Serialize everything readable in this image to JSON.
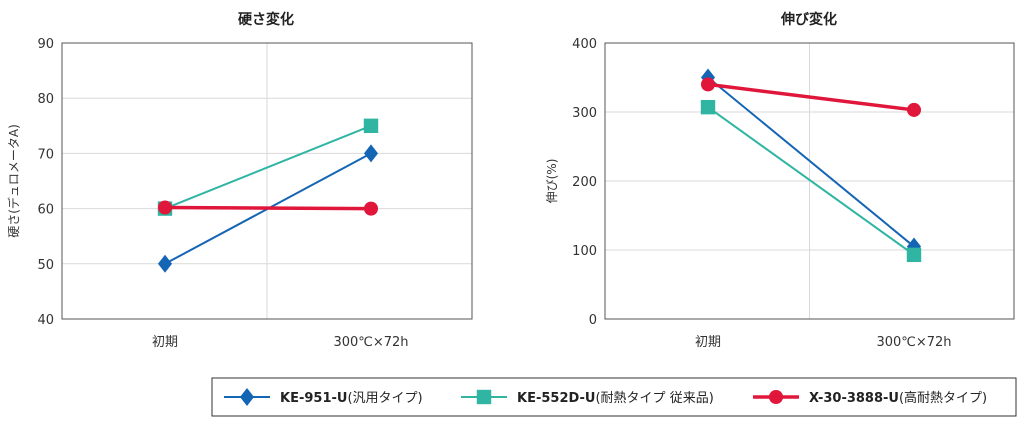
{
  "chart_data": [
    {
      "type": "line",
      "title": "硬さ変化",
      "ylabel": "硬さ(デュロメータA)",
      "categories": [
        "初期",
        "300℃×72h"
      ],
      "ylim": [
        40,
        90
      ],
      "yticks": [
        40,
        50,
        60,
        70,
        80,
        90
      ],
      "grid": true,
      "series": [
        {
          "name": "KE-951-U",
          "values": [
            50,
            70
          ]
        },
        {
          "name": "KE-552D-U",
          "values": [
            60,
            75
          ]
        },
        {
          "name": "X-30-3888-U",
          "values": [
            60.2,
            60
          ]
        }
      ]
    },
    {
      "type": "line",
      "title": "伸び変化",
      "ylabel": "伸び(%)",
      "categories": [
        "初期",
        "300℃×72h"
      ],
      "ylim": [
        0,
        400
      ],
      "yticks": [
        0,
        100,
        200,
        300,
        400
      ],
      "grid": true,
      "series": [
        {
          "name": "KE-951-U",
          "values": [
            350,
            105
          ]
        },
        {
          "name": "KE-552D-U",
          "values": [
            307,
            93
          ]
        },
        {
          "name": "X-30-3888-U",
          "values": [
            340,
            303
          ]
        }
      ]
    }
  ],
  "legend": [
    {
      "code": "KE-951-U",
      "note": "(汎用タイプ)",
      "color": "#1565b5",
      "marker": "diamond"
    },
    {
      "code": "KE-552D-U",
      "note": "(耐熱タイプ 従来品)",
      "color": "#2fb5a2",
      "marker": "square"
    },
    {
      "code": "X-30-3888-U",
      "note": "(高耐熱タイプ)",
      "color": "#e0173a",
      "marker": "circle"
    }
  ]
}
